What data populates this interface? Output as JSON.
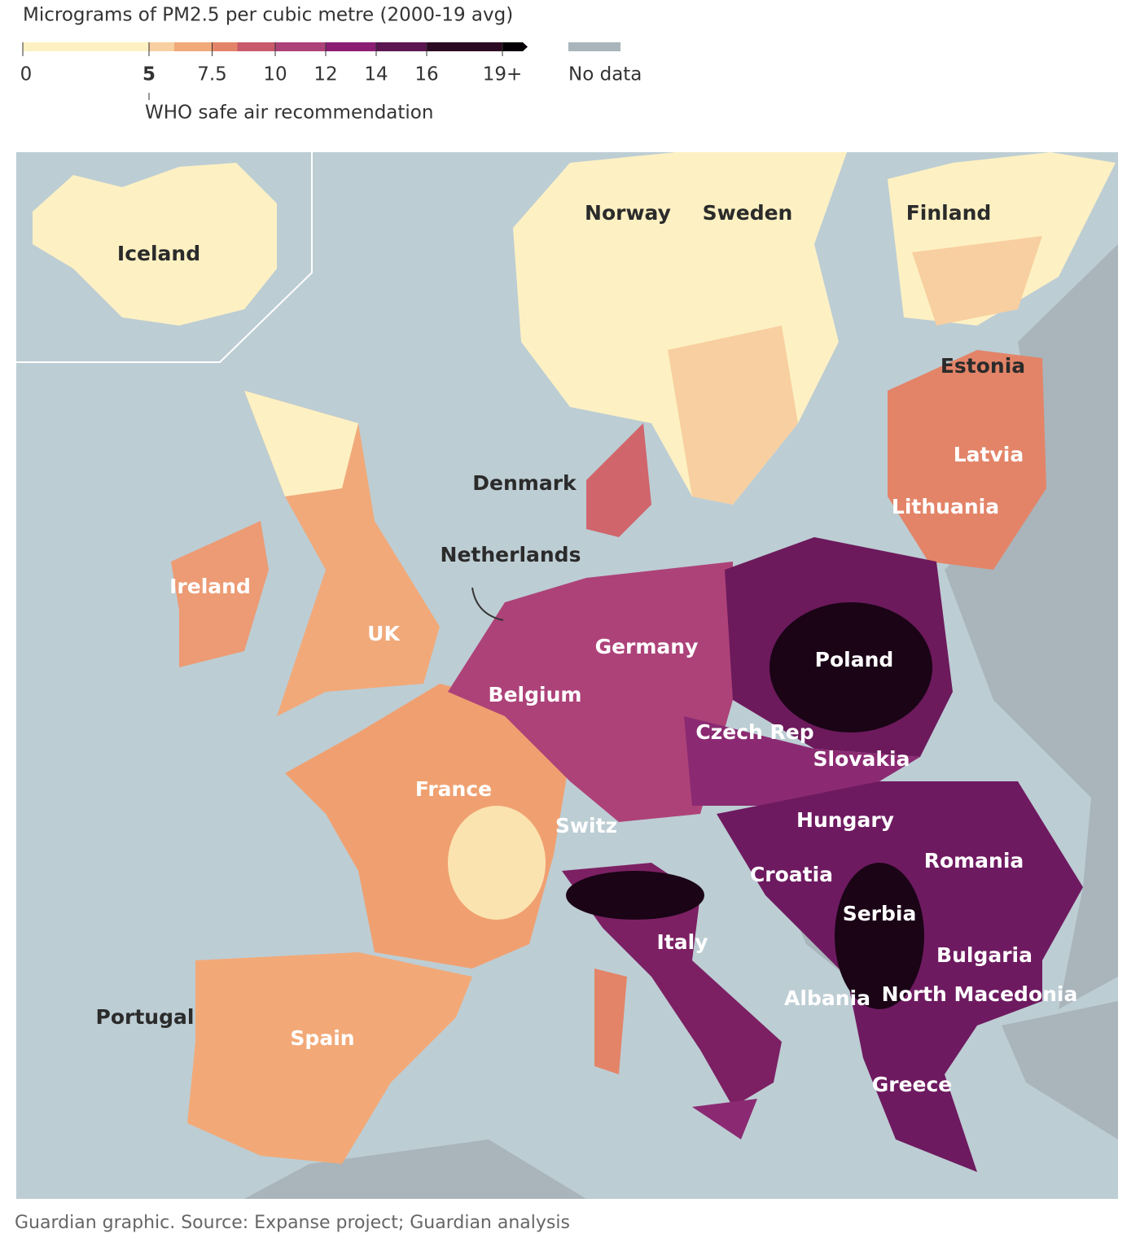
{
  "legend": {
    "title": "Micrograms of PM2.5 per cubic metre (2000-19 avg)",
    "xlim": [
      0,
      20
    ],
    "ticks": [
      0,
      5,
      7.5,
      10,
      12,
      14,
      16,
      {
        "value": 19,
        "label": "19+"
      }
    ],
    "bins": [
      0,
      5,
      6,
      7.5,
      8.5,
      10,
      12,
      14,
      16,
      19,
      20
    ],
    "colors": [
      "#fdf1c3",
      "#f8cfa0",
      "#f1a979",
      "#e38468",
      "#c95a6b",
      "#ad4279",
      "#8b1e73",
      "#5b1550",
      "#2d0a24",
      "#050005"
    ],
    "threshold": {
      "value": 5,
      "label": "WHO safe air recommendation"
    },
    "no_data": {
      "label": "No data",
      "color": "#a9b5bb"
    }
  },
  "map": {
    "countries": [
      "Iceland",
      "Norway",
      "Sweden",
      "Finland",
      "Estonia",
      "Latvia",
      "Lithuania",
      "Denmark",
      "Netherlands",
      "Ireland",
      "UK",
      "Germany",
      "Poland",
      "Belgium",
      "Czech Rep",
      "Slovakia",
      "France",
      "Switz",
      "Hungary",
      "Romania",
      "Croatia",
      "Serbia",
      "Italy",
      "Bulgaria",
      "Albania",
      "North Macedonia",
      "Portugal",
      "Spain",
      "Greece"
    ]
  },
  "source": "Guardian graphic. Source: Expanse project; Guardian analysis"
}
